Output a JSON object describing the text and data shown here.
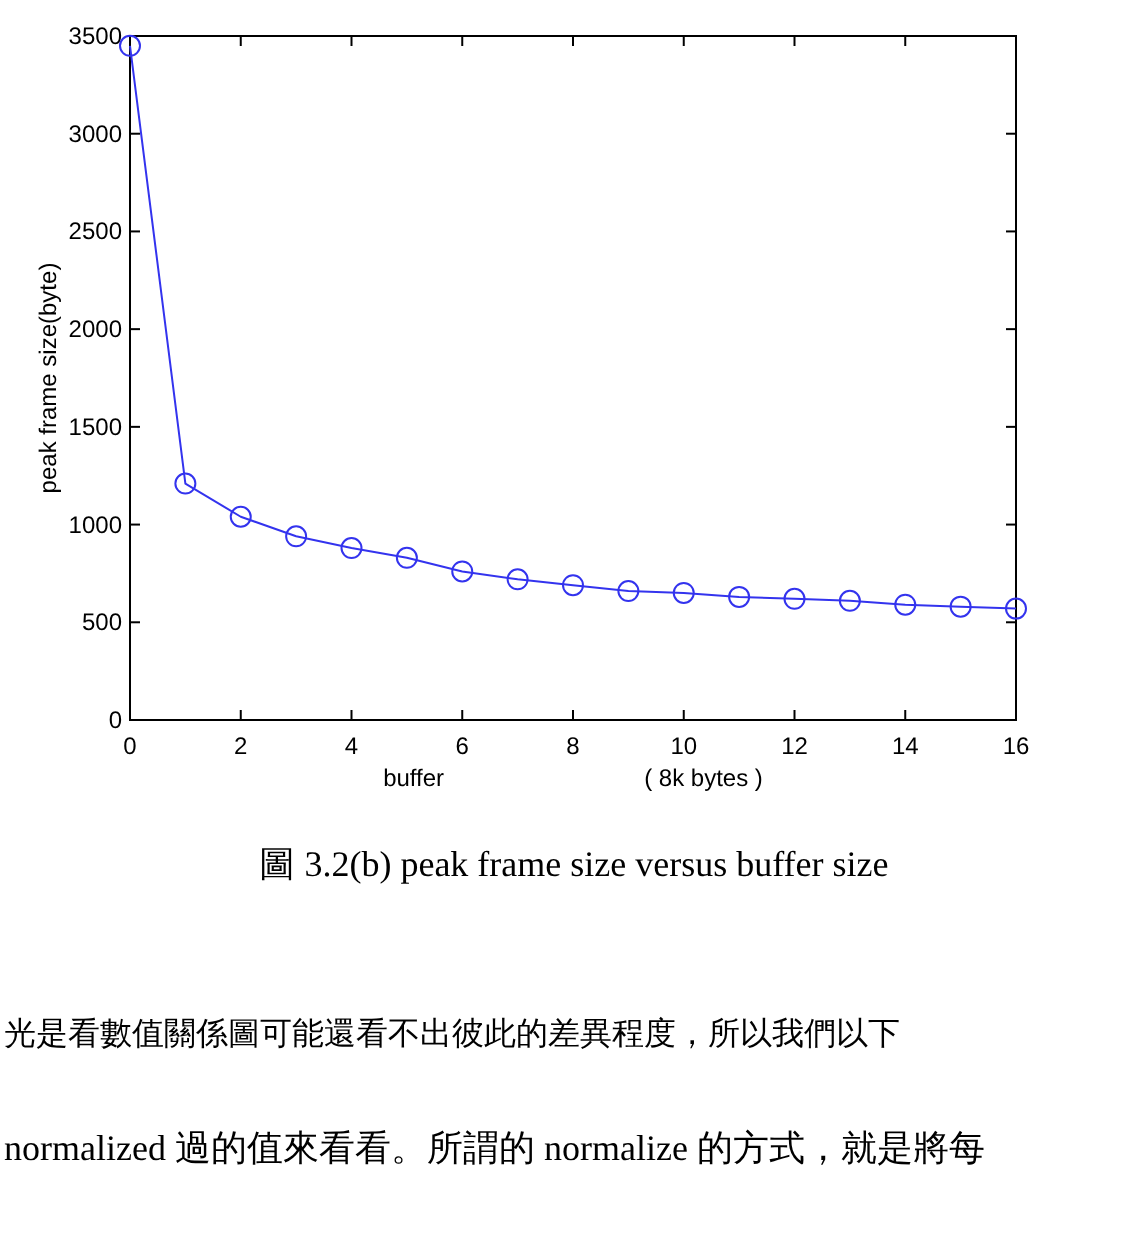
{
  "chart_data": {
    "type": "line",
    "xlabel": "buffer                              ( 8k bytes )",
    "ylabel": "peak frame size(byte)",
    "x": [
      0,
      1,
      2,
      3,
      4,
      5,
      6,
      7,
      8,
      9,
      10,
      11,
      12,
      13,
      14,
      15,
      16
    ],
    "series": [
      {
        "color": "#3333ee",
        "values": [
          3450,
          1210,
          1040,
          940,
          880,
          830,
          760,
          720,
          690,
          660,
          650,
          630,
          620,
          610,
          590,
          580,
          570
        ]
      }
    ],
    "xlim": [
      0,
      16
    ],
    "ylim": [
      0,
      3500
    ],
    "xticks": [
      0,
      2,
      4,
      6,
      8,
      10,
      12,
      14,
      16
    ],
    "yticks": [
      0,
      500,
      1000,
      1500,
      2000,
      2500,
      3000,
      3500
    ],
    "marker": "circle",
    "line_style": "solid",
    "grid": false,
    "annotations": [
      "圖 3.2(b) peak frame size versus buffer size",
      "光是看數值關係圖可能還看不出彼此的差異程度，所以我們以下",
      "normalized 過的值來看看。所謂的 normalize 的方式，就是將每"
    ]
  }
}
